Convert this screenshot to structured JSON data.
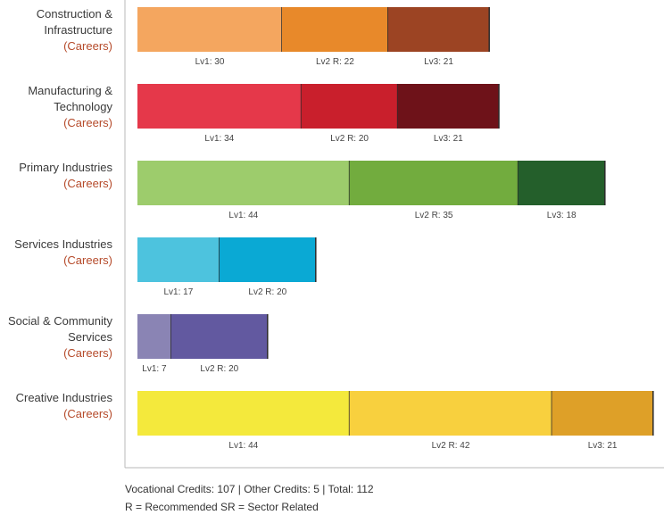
{
  "chart_data": {
    "type": "bar",
    "orientation": "horizontal",
    "stacked": true,
    "categories": [
      {
        "name_lines": [
          "Construction &",
          "Infrastructure"
        ],
        "sublabel": "(Careers)",
        "segments": [
          {
            "label": "Lv1: 30",
            "value": 30,
            "color": "#f4a65f"
          },
          {
            "label": "Lv2 R: 22",
            "value": 22,
            "color": "#e8892a"
          },
          {
            "label": "Lv3: 21",
            "value": 21,
            "color": "#9c4423"
          }
        ]
      },
      {
        "name_lines": [
          "Manufacturing &",
          "Technology"
        ],
        "sublabel": "(Careers)",
        "segments": [
          {
            "label": "Lv1: 34",
            "value": 34,
            "color": "#e5384a"
          },
          {
            "label": "Lv2 R: 20",
            "value": 20,
            "color": "#c91f2c"
          },
          {
            "label": "Lv3: 21",
            "value": 21,
            "color": "#6e1219"
          }
        ]
      },
      {
        "name_lines": [
          "Primary Industries"
        ],
        "sublabel": "(Careers)",
        "segments": [
          {
            "label": "Lv1: 44",
            "value": 44,
            "color": "#9dcc6c"
          },
          {
            "label": "Lv2 R: 35",
            "value": 35,
            "color": "#72ac3e"
          },
          {
            "label": "Lv3: 18",
            "value": 18,
            "color": "#245f2b"
          }
        ]
      },
      {
        "name_lines": [
          "Services Industries"
        ],
        "sublabel": "(Careers)",
        "segments": [
          {
            "label": "Lv1: 17",
            "value": 17,
            "color": "#4dc3de",
            "label_color": "#2a87a8"
          },
          {
            "label": "Lv2 R: 20",
            "value": 20,
            "color": "#0aa9d4",
            "label_color": "#2a87a8"
          }
        ]
      },
      {
        "name_lines": [
          "Social & Community",
          "Services"
        ],
        "sublabel": "(Careers)",
        "segments": [
          {
            "label": "Lv1: 7",
            "value": 7,
            "color": "#8a84b4"
          },
          {
            "label": "Lv2 R: 20",
            "value": 20,
            "color": "#6259a0"
          }
        ]
      },
      {
        "name_lines": [
          "Creative Industries"
        ],
        "sublabel": "(Careers)",
        "segments": [
          {
            "label": "Lv1: 44",
            "value": 44,
            "color": "#f4e93c",
            "label_color": "#8a6a1a"
          },
          {
            "label": "Lv2 R: 42",
            "value": 42,
            "color": "#f8d03e",
            "label_color": "#8a6a1a"
          },
          {
            "label": "Lv3: 21",
            "value": 21,
            "color": "#dea028",
            "label_color": "#8a6a1a"
          }
        ]
      }
    ],
    "xlim": [
      0,
      107
    ],
    "grid": false,
    "legend": "none"
  },
  "footer": {
    "credits": "Vocational Credits: 107 | Other Credits: 5 | Total: 112",
    "legend_note": "R = Recommended SR = Sector Related"
  }
}
